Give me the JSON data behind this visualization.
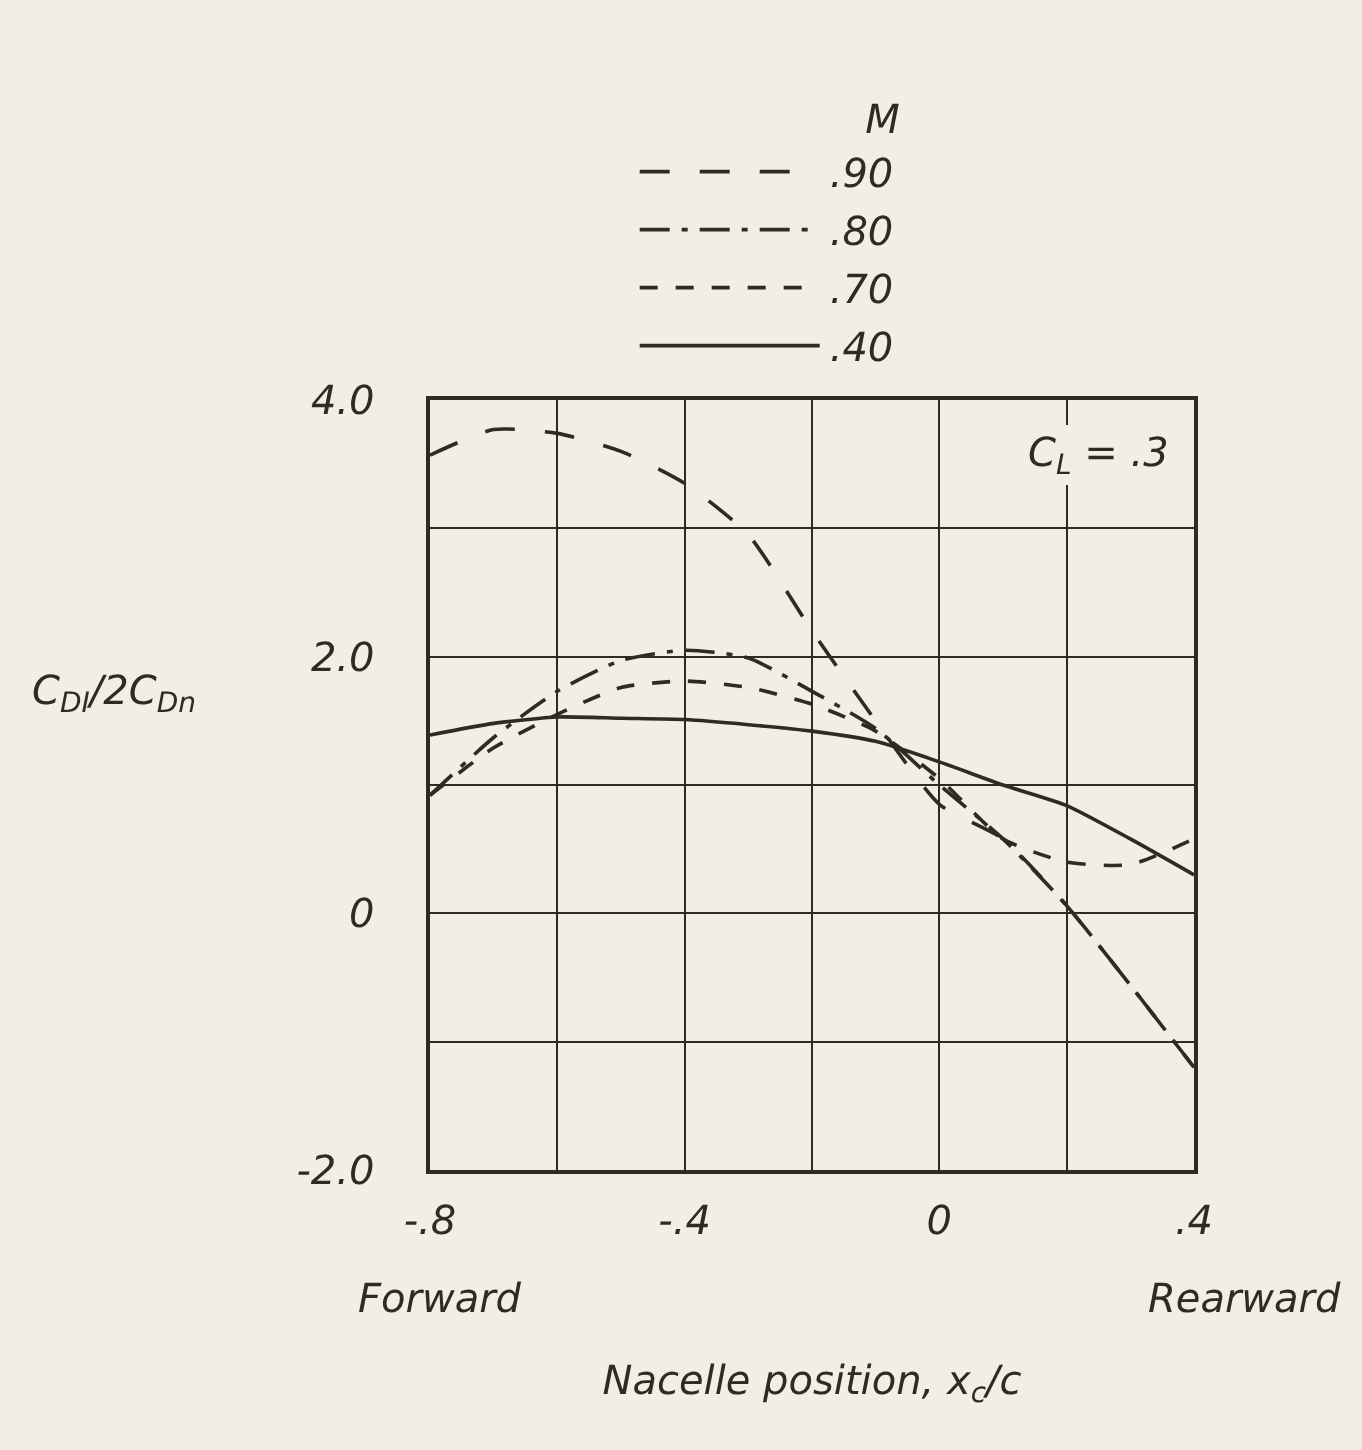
{
  "chart_data": {
    "type": "line",
    "xlabel": "Nacelle position, x$_{c}$/c",
    "ylabel": "C$_{DI}$/2C$_{Dn}$",
    "legend_title": "M",
    "annotations": [
      "C$_{L}$ = .3",
      "Forward",
      "Rearward"
    ],
    "x": [
      -0.8,
      -0.7,
      -0.6,
      -0.5,
      -0.4,
      -0.3,
      -0.2,
      -0.1,
      0,
      0.1,
      0.2,
      0.3,
      0.4
    ],
    "series": [
      {
        "name": ".90",
        "color": "#2e2a26",
        "line_style": "dashed",
        "values": [
          3.57,
          3.77,
          3.74,
          3.6,
          3.35,
          2.95,
          2.2,
          1.5,
          0.85,
          0.58,
          0.06,
          -0.56,
          -1.2
        ]
      },
      {
        "name": ".80",
        "color": "#2e2a26",
        "line_style": "dashed",
        "values": [
          0.92,
          1.37,
          1.73,
          1.97,
          2.05,
          1.99,
          1.73,
          1.44,
          1.0,
          0.58,
          0.06,
          -0.56,
          -1.2
        ]
      },
      {
        "name": ".70",
        "color": "#2e2a26",
        "line_style": "dashed",
        "values": [
          0.92,
          1.29,
          1.55,
          1.76,
          1.81,
          1.76,
          1.63,
          1.42,
          1.05,
          0.58,
          0.4,
          0.38,
          0.58
        ]
      },
      {
        "name": ".40",
        "color": "#2e2a26",
        "line_style": "solid",
        "values": [
          1.39,
          1.48,
          1.53,
          1.52,
          1.51,
          1.47,
          1.42,
          1.34,
          1.18,
          1.0,
          0.84,
          0.58,
          0.3
        ]
      }
    ],
    "xlim": [
      -0.8,
      0.4
    ],
    "xticks": [
      {
        "value": -0.8,
        "label": "-.8"
      },
      {
        "value": -0.6,
        "label": null
      },
      {
        "value": -0.4,
        "label": "-.4"
      },
      {
        "value": -0.2,
        "label": null
      },
      0,
      {
        "value": 0.2,
        "label": null
      },
      {
        "value": 0.4,
        "label": ".4"
      }
    ],
    "ylim": [
      -2,
      4
    ],
    "yticks": [
      {
        "value": -2,
        "label": "-2.0"
      },
      {
        "value": -1,
        "label": null
      },
      0,
      {
        "value": 1,
        "label": null
      },
      {
        "value": 2,
        "label": "2.0"
      },
      {
        "value": 3,
        "label": null
      },
      {
        "value": 4,
        "label": "4.0"
      }
    ],
    "grid": true,
    "legend": "top",
    "marker": "none"
  }
}
